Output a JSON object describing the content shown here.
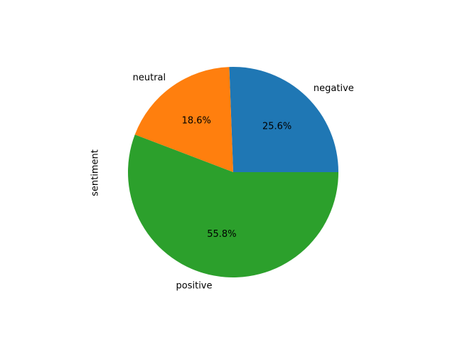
{
  "chart_data": {
    "type": "pie",
    "ylabel": "sentiment",
    "start_angle_deg": 0,
    "direction": "counterclockwise",
    "slices": [
      {
        "label": "negative",
        "value": 25.6,
        "pct_label": "25.6%",
        "color": "#1f77b4"
      },
      {
        "label": "neutral",
        "value": 18.6,
        "pct_label": "18.6%",
        "color": "#ff7f0e"
      },
      {
        "label": "positive",
        "value": 55.8,
        "pct_label": "55.8%",
        "color": "#2ca02c"
      }
    ]
  }
}
